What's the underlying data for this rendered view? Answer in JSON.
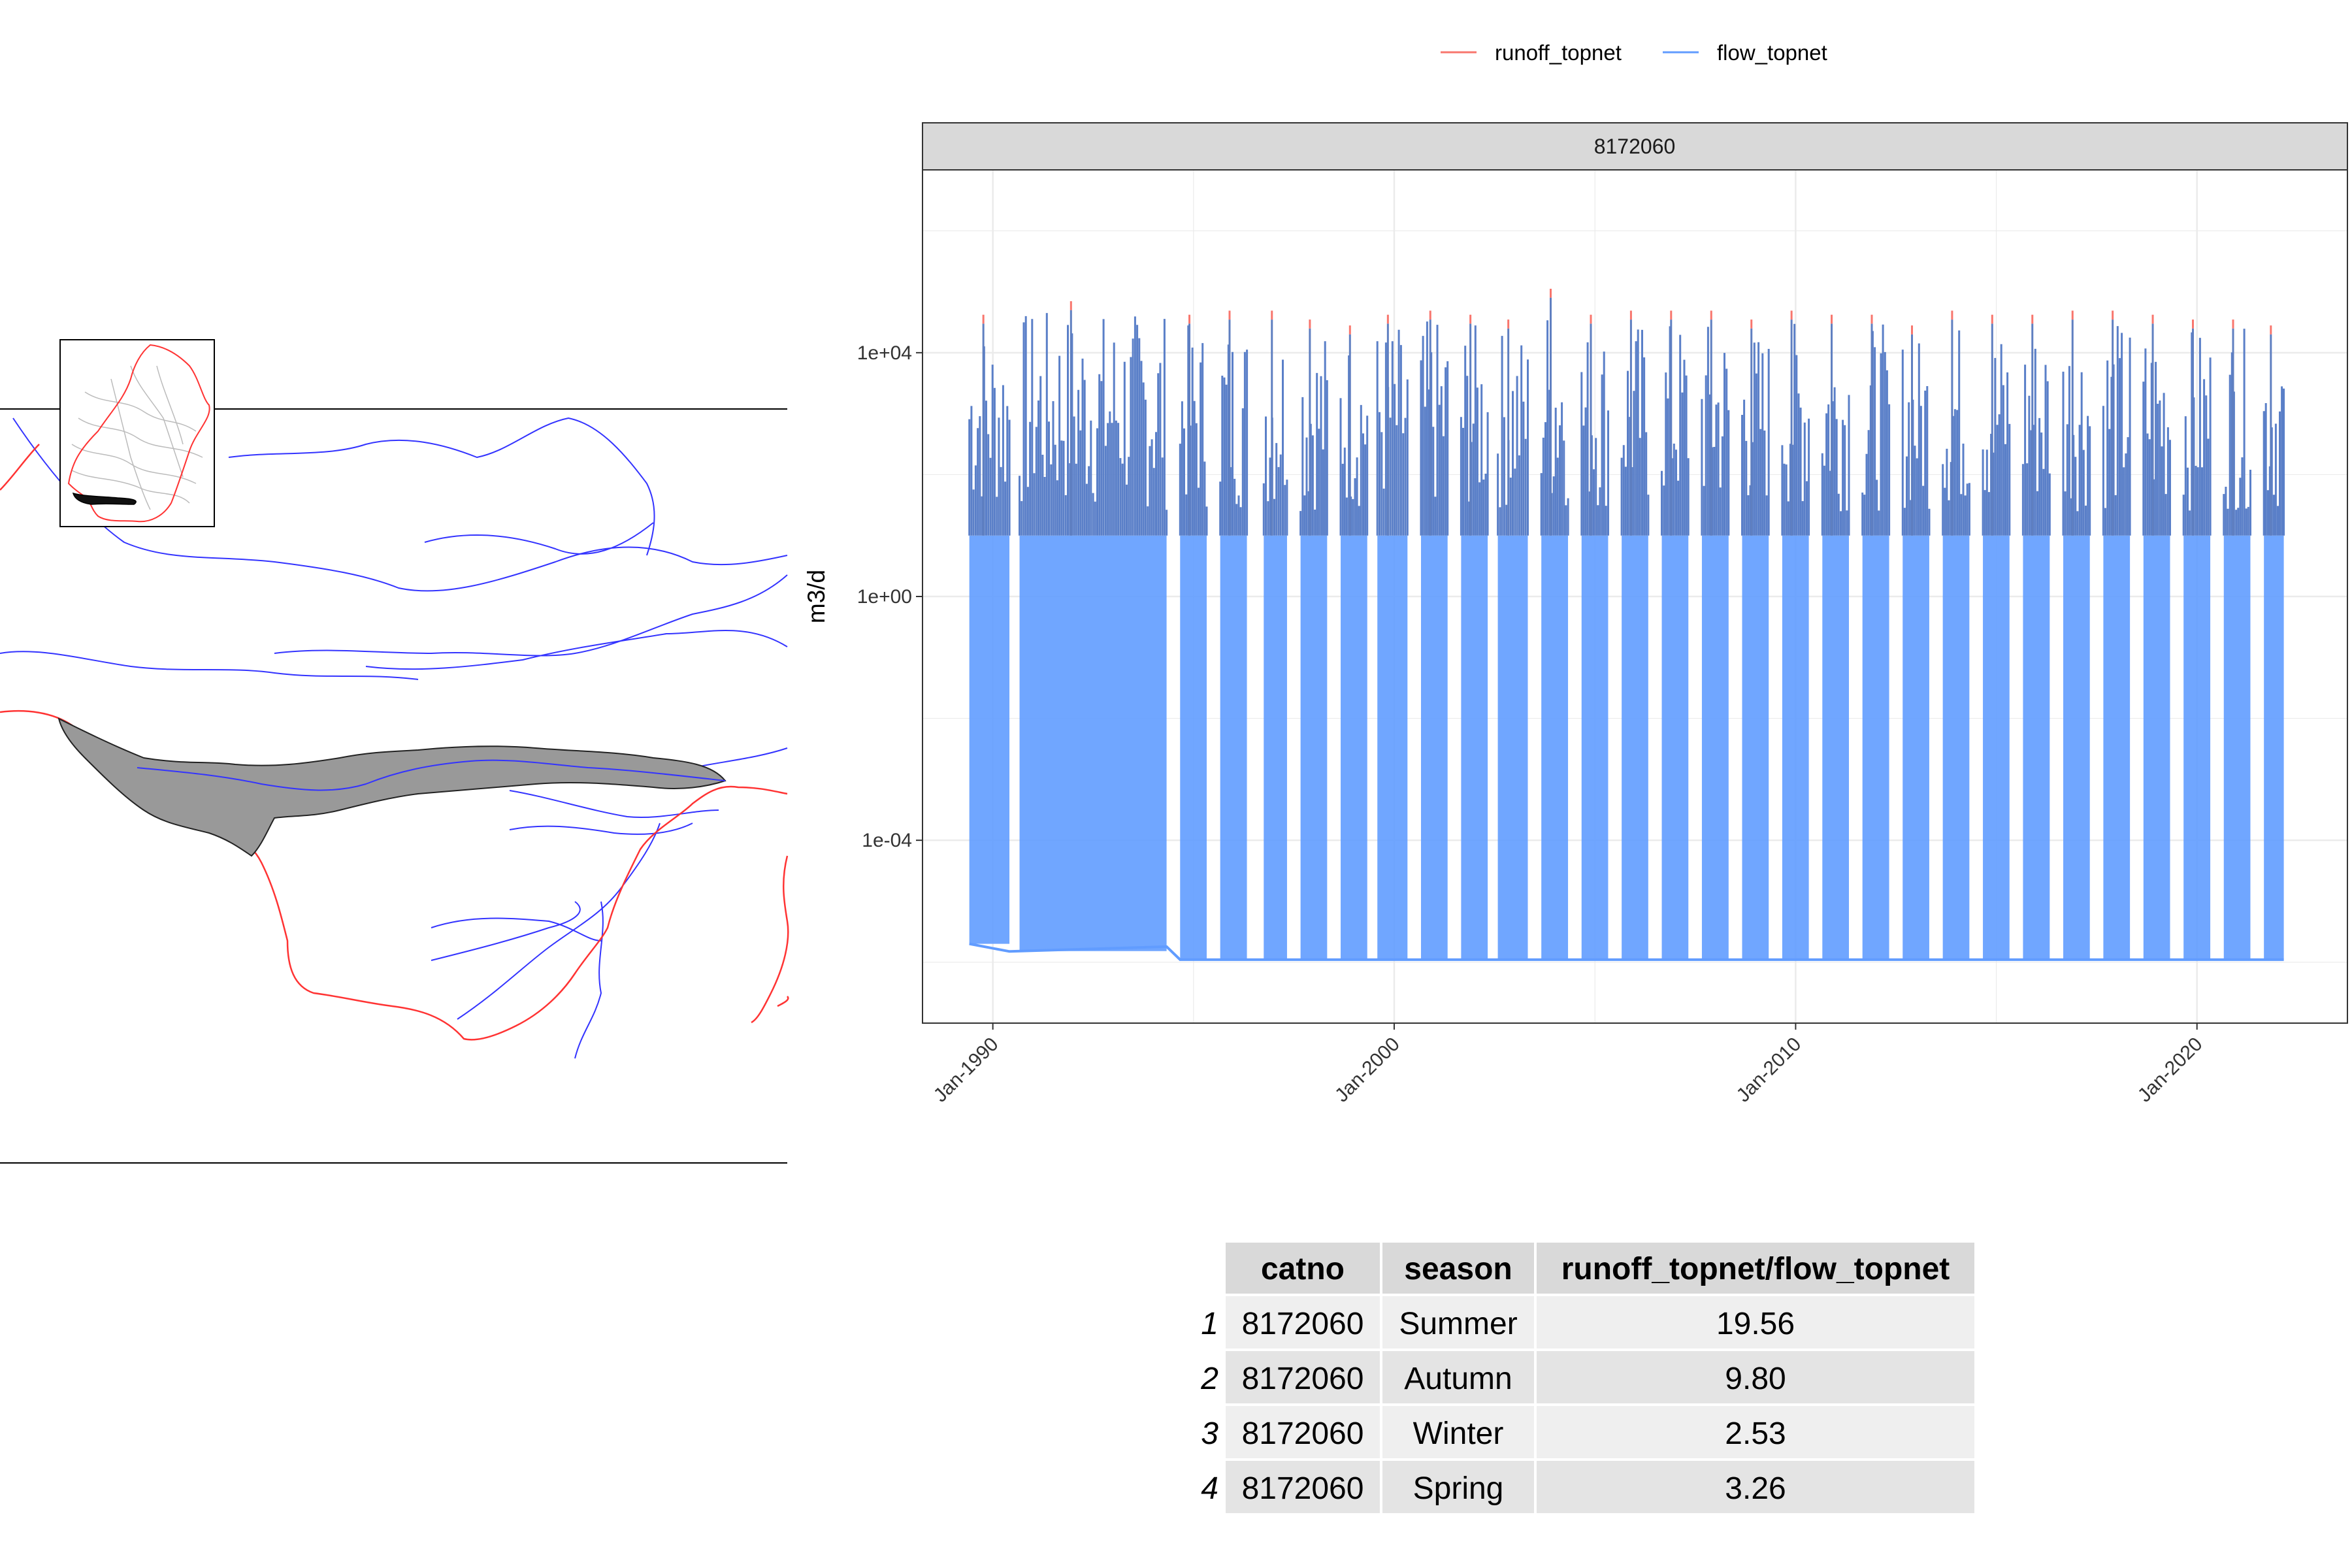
{
  "chart_data": {
    "type": "area",
    "panel_label": "8172060",
    "ylabel": "m3/d",
    "xlabel": "",
    "y_scale": "log10",
    "ylim": [
      1e-07,
      10000000.0
    ],
    "y_ticks": [
      {
        "value": 0.0001,
        "label": "1e-04"
      },
      {
        "value": 1,
        "label": "1e+00"
      },
      {
        "value": 10000,
        "label": "1e+04"
      }
    ],
    "x_range": [
      "1988-04-01",
      "2023-10-01"
    ],
    "x_ticks": [
      {
        "date": "1990-01-01",
        "label": "Jan-1990"
      },
      {
        "date": "2000-01-01",
        "label": "Jan-2000"
      },
      {
        "date": "2010-01-01",
        "label": "Jan-2010"
      },
      {
        "date": "2020-01-01",
        "label": "Jan-2020"
      }
    ],
    "grid": true,
    "legend_position": "top",
    "series": [
      {
        "name": "runoff_topnet",
        "color": "#F8766D"
      },
      {
        "name": "flow_topnet",
        "color": "#619CFF"
      }
    ],
    "flow_baseline": [
      {
        "x": "1989-06-01",
        "y": 2e-06
      },
      {
        "x": "1990-06-01",
        "y": 1.5e-06
      },
      {
        "x": "1994-05-01",
        "y": 1.8e-06
      },
      {
        "x": "1994-09-01",
        "y": 1.1e-06
      },
      {
        "x": "2022-03-01",
        "y": 1.1e-06
      }
    ],
    "flow_periods": [
      {
        "start": "1989-06-01",
        "end": "1990-06-01",
        "peak": 30000
      },
      {
        "start": "1990-09-01",
        "end": "1994-05-01",
        "peak": 50000
      },
      {
        "start": "1994-09-01",
        "end": "1995-05-01",
        "peak": 30000
      },
      {
        "start": "1995-09-01",
        "end": "1996-05-01",
        "peak": 35000
      },
      {
        "start": "1996-10-01",
        "end": "1997-05-01",
        "peak": 35000
      },
      {
        "start": "1997-09-01",
        "end": "1998-05-01",
        "peak": 25000
      },
      {
        "start": "1998-09-01",
        "end": "1999-05-01",
        "peak": 20000
      },
      {
        "start": "1999-08-01",
        "end": "2000-05-01",
        "peak": 30000
      },
      {
        "start": "2000-09-01",
        "end": "2001-05-01",
        "peak": 35000
      },
      {
        "start": "2001-09-01",
        "end": "2002-05-01",
        "peak": 30000
      },
      {
        "start": "2002-08-01",
        "end": "2003-05-01",
        "peak": 25000
      },
      {
        "start": "2003-09-01",
        "end": "2004-05-01",
        "peak": 80000
      },
      {
        "start": "2004-09-01",
        "end": "2005-05-01",
        "peak": 30000
      },
      {
        "start": "2005-09-01",
        "end": "2006-05-01",
        "peak": 35000
      },
      {
        "start": "2006-09-01",
        "end": "2007-05-01",
        "peak": 35000
      },
      {
        "start": "2007-09-01",
        "end": "2008-05-01",
        "peak": 35000
      },
      {
        "start": "2008-09-01",
        "end": "2009-05-01",
        "peak": 25000
      },
      {
        "start": "2009-09-01",
        "end": "2010-05-01",
        "peak": 35000
      },
      {
        "start": "2010-09-01",
        "end": "2011-05-01",
        "peak": 30000
      },
      {
        "start": "2011-09-01",
        "end": "2012-05-01",
        "peak": 30000
      },
      {
        "start": "2012-09-01",
        "end": "2013-05-01",
        "peak": 20000
      },
      {
        "start": "2013-09-01",
        "end": "2014-05-01",
        "peak": 35000
      },
      {
        "start": "2014-09-01",
        "end": "2015-05-01",
        "peak": 30000
      },
      {
        "start": "2015-09-01",
        "end": "2016-05-01",
        "peak": 30000
      },
      {
        "start": "2016-09-01",
        "end": "2017-05-01",
        "peak": 35000
      },
      {
        "start": "2017-09-01",
        "end": "2018-05-01",
        "peak": 35000
      },
      {
        "start": "2018-09-01",
        "end": "2019-05-01",
        "peak": 30000
      },
      {
        "start": "2019-09-01",
        "end": "2020-05-01",
        "peak": 25000
      },
      {
        "start": "2020-09-01",
        "end": "2021-05-01",
        "peak": 25000
      },
      {
        "start": "2021-09-01",
        "end": "2022-03-01",
        "peak": 20000
      }
    ]
  },
  "table": {
    "columns": [
      "catno",
      "season",
      "runoff_topnet/flow_topnet"
    ],
    "rows": [
      {
        "index": "1",
        "catno": "8172060",
        "season": "Summer",
        "ratio": "19.56"
      },
      {
        "index": "2",
        "catno": "8172060",
        "season": "Autumn",
        "ratio": "9.80"
      },
      {
        "index": "3",
        "catno": "8172060",
        "season": "Winter",
        "ratio": "2.53"
      },
      {
        "index": "4",
        "catno": "8172060",
        "season": "Spring",
        "ratio": "3.26"
      }
    ]
  },
  "map": {
    "catchment_fill": "#999999",
    "river_color": "#3333ff",
    "boundary_color": "#ff3333"
  }
}
